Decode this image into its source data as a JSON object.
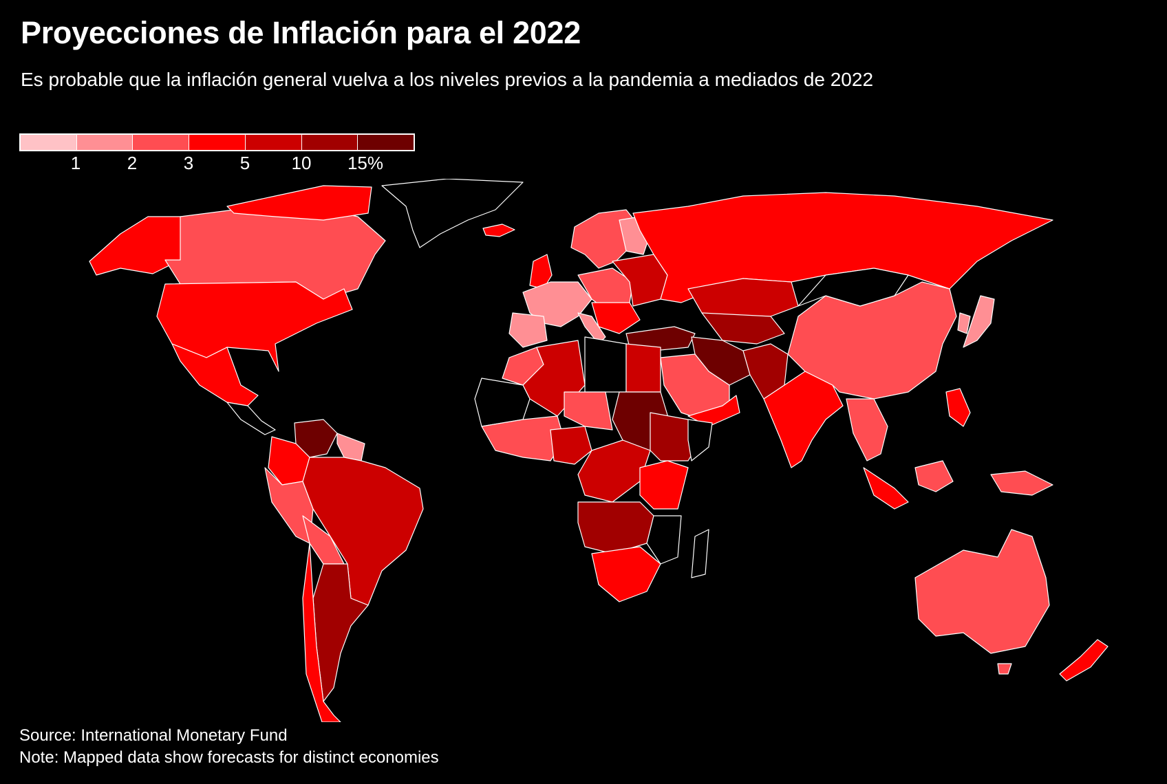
{
  "title": "Proyecciones de Inflación para el 2022",
  "subtitle": "Es probable que la inflación general vuelva a los niveles previos a la pandemia a mediados de 2022",
  "legend": {
    "colors": [
      "#ffc2c6",
      "#ff8f94",
      "#ff4d52",
      "#ff0000",
      "#cc0000",
      "#a10000",
      "#6e0000"
    ],
    "ticks": [
      "1",
      "2",
      "3",
      "5",
      "10",
      "15%"
    ]
  },
  "palette": {
    "background": "#000000",
    "border": "#ffffff",
    "no_data": "#000000"
  },
  "source": "Source: International Monetary Fund",
  "note": "Note: Mapped data show forecasts for distinct economies"
}
